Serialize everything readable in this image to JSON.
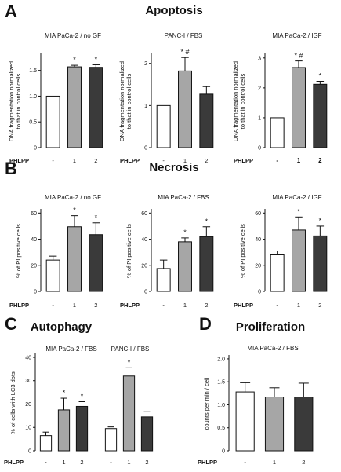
{
  "sections": [
    {
      "letter": "A",
      "title": "Apoptosis"
    },
    {
      "letter": "B",
      "title": "Necrosis"
    },
    {
      "letter": "C",
      "title": "Autophagy"
    },
    {
      "letter": "D",
      "title": "Proliferation"
    }
  ],
  "row_label": "PHLPP",
  "colors": {
    "control": "#ffffff",
    "phlpp1": "#a6a6a6",
    "phlpp2": "#3a3a3a",
    "axis": "#111111"
  },
  "chart_data": [
    {
      "id": "a1",
      "type": "bar",
      "title": "MIA PaCa-2 / no GF",
      "ylabel": [
        "DNA fragmentation normalized",
        "to that in control cells"
      ],
      "categories": [
        "-",
        "1",
        "2"
      ],
      "values": [
        1.0,
        1.57,
        1.56
      ],
      "errors": [
        0,
        0.03,
        0.05
      ],
      "annotations": [
        "",
        "*",
        "*"
      ],
      "ylim": [
        0,
        1.8
      ],
      "yticks": [
        0,
        0.5,
        1.0,
        1.5
      ],
      "ytick_labels": [
        "0",
        "0.5",
        "1.0",
        "1.5"
      ],
      "grid": false
    },
    {
      "id": "a2",
      "type": "bar",
      "title": "PANC-I / FBS",
      "ylabel": [
        "DNA fragmentation normalized",
        "to that in control cells"
      ],
      "categories": [
        "-",
        "1",
        "2"
      ],
      "values": [
        1.0,
        1.82,
        1.27
      ],
      "errors": [
        0,
        0.32,
        0.18
      ],
      "annotations": [
        "",
        "* #",
        ""
      ],
      "ylim": [
        0,
        2.2
      ],
      "yticks": [
        0,
        1,
        2
      ],
      "ytick_labels": [
        "0",
        "1",
        "2"
      ],
      "grid": false
    },
    {
      "id": "a3",
      "type": "bar",
      "title": "MIA PaCa-2 / IGF",
      "ylabel": [
        "DNA fragmentation normalized",
        "to that in control cells"
      ],
      "categories": [
        "-",
        "1",
        "2"
      ],
      "values": [
        1.0,
        2.68,
        2.12
      ],
      "errors": [
        0,
        0.22,
        0.1
      ],
      "annotations": [
        "",
        "* #",
        "*"
      ],
      "ylim": [
        0,
        3.1
      ],
      "yticks": [
        0,
        1,
        2,
        3
      ],
      "ytick_labels": [
        "0",
        "1",
        "2",
        "3"
      ],
      "grid": false
    },
    {
      "id": "b1",
      "type": "bar",
      "title": "MIA PaCa-2 / no GF",
      "ylabel": [
        "% of PI positive cells"
      ],
      "categories": [
        "-",
        "1",
        "2"
      ],
      "values": [
        24,
        49.5,
        43.5
      ],
      "errors": [
        3,
        8.5,
        9
      ],
      "annotations": [
        "",
        "*",
        "*"
      ],
      "ylim": [
        0,
        62
      ],
      "yticks": [
        0,
        20,
        40,
        60
      ],
      "ytick_labels": [
        "0",
        "20",
        "40",
        "60"
      ],
      "grid": false
    },
    {
      "id": "b2",
      "type": "bar",
      "title": "MIA PaCa-2 / FBS",
      "ylabel": [
        "% of PI positive cells"
      ],
      "categories": [
        "-",
        "1",
        "2"
      ],
      "values": [
        17.5,
        38,
        42
      ],
      "errors": [
        6.5,
        3,
        7.5
      ],
      "annotations": [
        "",
        "*",
        "*"
      ],
      "ylim": [
        0,
        62
      ],
      "yticks": [
        0,
        20,
        40,
        60
      ],
      "ytick_labels": [
        "0",
        "20",
        "40",
        "60"
      ],
      "grid": false
    },
    {
      "id": "b3",
      "type": "bar",
      "title": "MIA PaCa-2 / IGF",
      "ylabel": [
        "% of PI positive cells"
      ],
      "categories": [
        "-",
        "1",
        "2"
      ],
      "values": [
        28,
        47,
        42.5
      ],
      "errors": [
        3,
        10,
        7.5
      ],
      "annotations": [
        "",
        "*",
        "*"
      ],
      "ylim": [
        0,
        62
      ],
      "yticks": [
        0,
        20,
        40,
        60
      ],
      "ytick_labels": [
        "0",
        "20",
        "40",
        "60"
      ],
      "grid": false
    },
    {
      "id": "c1",
      "type": "bar",
      "titles": [
        "MIA PaCa-2 / FBS",
        "PANC-I / FBS"
      ],
      "ylabel": [
        "% of cells with LC3 dots"
      ],
      "categories": [
        "-",
        "1",
        "2",
        "-",
        "1",
        "2"
      ],
      "values": [
        6.5,
        17.5,
        19,
        9.5,
        32,
        14.5
      ],
      "errors": [
        1.5,
        5,
        2,
        0.7,
        3.5,
        2.2
      ],
      "annotations": [
        "",
        "*",
        "*",
        "",
        "*",
        ""
      ],
      "ylim": [
        0,
        41
      ],
      "yticks": [
        0,
        10,
        20,
        30,
        40
      ],
      "ytick_labels": [
        "0",
        "10",
        "20",
        "30",
        "40"
      ],
      "grid": false
    },
    {
      "id": "d1",
      "type": "bar",
      "title": "MIA PaCa-2 / FBS",
      "ylabel": [
        "counts per min / cell"
      ],
      "categories": [
        "-",
        "1",
        "2"
      ],
      "values": [
        1.28,
        1.17,
        1.17
      ],
      "errors": [
        0.2,
        0.2,
        0.3
      ],
      "annotations": [
        "",
        "",
        ""
      ],
      "ylim": [
        0,
        2.05
      ],
      "yticks": [
        0,
        0.5,
        1.0,
        1.5,
        2.0
      ],
      "ytick_labels": [
        "0",
        "0.5",
        "1.0",
        "1.5",
        "2.0"
      ],
      "grid": false
    }
  ]
}
